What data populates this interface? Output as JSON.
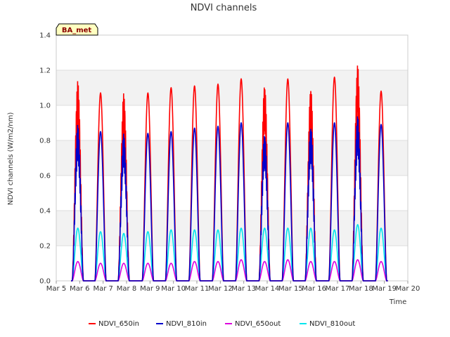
{
  "chart_data": {
    "type": "line",
    "title": "NDVI channels",
    "xlabel": "Time",
    "ylabel": "NDVI channels (W/m2/nm)",
    "badge": "BA_met",
    "ylim": [
      0.0,
      1.4
    ],
    "xlim": [
      5,
      20
    ],
    "y_ticks": [
      "0.0",
      "0.2",
      "0.4",
      "0.6",
      "0.8",
      "1.0",
      "1.2",
      "1.4"
    ],
    "y_tick_values": [
      0.0,
      0.2,
      0.4,
      0.6,
      0.8,
      1.0,
      1.2,
      1.4
    ],
    "x_ticks": [
      "Mar 5",
      "Mar 6",
      "Mar 7",
      "Mar 8",
      "Mar 9",
      "Mar 10",
      "Mar 11",
      "Mar 12",
      "Mar 13",
      "Mar 14",
      "Mar 15",
      "Mar 16",
      "Mar 17",
      "Mar 18",
      "Mar 19",
      "Mar 20"
    ],
    "x_tick_values": [
      5,
      6,
      7,
      8,
      9,
      10,
      11,
      12,
      13,
      14,
      15,
      16,
      17,
      18,
      19,
      20
    ],
    "day_peak_times": [
      5.92,
      6.89,
      7.88,
      8.91,
      9.9,
      10.9,
      11.9,
      12.89,
      13.89,
      14.88,
      15.86,
      16.87,
      17.86,
      18.86
    ],
    "series": [
      {
        "name": "NDVI_650in",
        "color": "#ff0000",
        "peaks": [
          1.14,
          1.07,
          1.07,
          1.07,
          1.1,
          1.11,
          1.12,
          1.15,
          1.12,
          1.15,
          1.1,
          1.16,
          1.23,
          1.08
        ]
      },
      {
        "name": "NDVI_810in",
        "color": "#0000cc",
        "peaks": [
          0.89,
          0.85,
          0.84,
          0.84,
          0.85,
          0.87,
          0.88,
          0.9,
          0.84,
          0.9,
          0.88,
          0.9,
          0.94,
          0.89
        ]
      },
      {
        "name": "NDVI_650out",
        "color": "#dd00dd",
        "peaks": [
          0.11,
          0.1,
          0.1,
          0.1,
          0.1,
          0.11,
          0.11,
          0.12,
          0.11,
          0.12,
          0.11,
          0.11,
          0.12,
          0.11
        ]
      },
      {
        "name": "NDVI_810out",
        "color": "#00e5ee",
        "peaks": [
          0.3,
          0.28,
          0.27,
          0.28,
          0.29,
          0.29,
          0.29,
          0.3,
          0.3,
          0.3,
          0.3,
          0.29,
          0.32,
          0.3
        ]
      }
    ]
  }
}
